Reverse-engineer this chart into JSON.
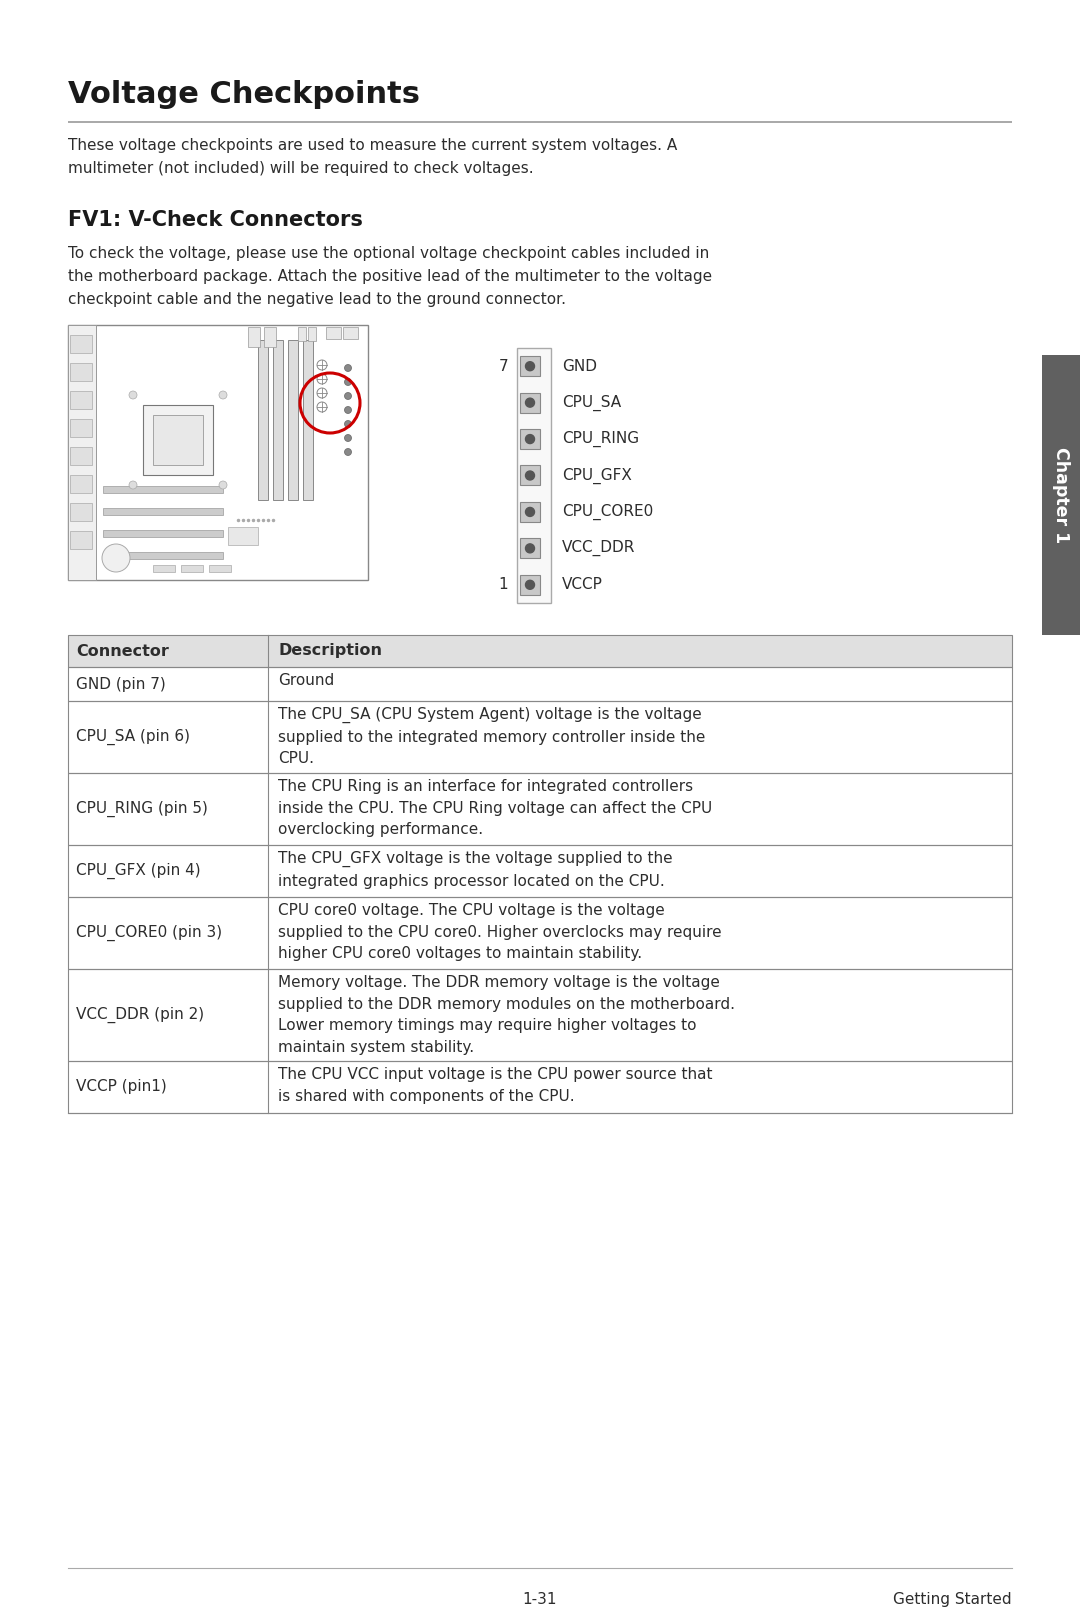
{
  "page_bg": "#ffffff",
  "title": "Voltage Checkpoints",
  "intro_text": "These voltage checkpoints are used to measure the current system voltages. A\nmultimeter (not included) will be required to check voltages.",
  "section_title": "FV1: V-Check Connectors",
  "section_text": "To check the voltage, please use the optional voltage checkpoint cables included in\nthe motherboard package. Attach the positive lead of the multimeter to the voltage\ncheckpoint cable and the negative lead to the ground connector.",
  "connector_labels": [
    "GND",
    "CPU_SA",
    "CPU_RING",
    "CPU_GFX",
    "CPU_CORE0",
    "VCC_DDR",
    "VCCP"
  ],
  "pin_numbers": [
    "7",
    "",
    "",
    "",
    "",
    "",
    "1"
  ],
  "table_headers": [
    "Connector",
    "Description"
  ],
  "table_rows": [
    [
      "GND (pin 7)",
      "Ground"
    ],
    [
      "CPU_SA (pin 6)",
      "The CPU_SA (CPU System Agent) voltage is the voltage\nsupplied to the integrated memory controller inside the\nCPU."
    ],
    [
      "CPU_RING (pin 5)",
      "The CPU Ring is an interface for integrated controllers\ninside the CPU. The CPU Ring voltage can affect the CPU\noverclocking performance."
    ],
    [
      "CPU_GFX (pin 4)",
      "The CPU_GFX voltage is the voltage supplied to the\nintegrated graphics processor located on the CPU."
    ],
    [
      "CPU_CORE0 (pin 3)",
      "CPU core0 voltage. The CPU voltage is the voltage\nsupplied to the CPU core0. Higher overclocks may require\nhigher CPU core0 voltages to maintain stability."
    ],
    [
      "VCC_DDR (pin 2)",
      "Memory voltage. The DDR memory voltage is the voltage\nsupplied to the DDR memory modules on the motherboard.\nLower memory timings may require higher voltages to\nmaintain system stability."
    ],
    [
      "VCCP (pin1)",
      "The CPU VCC input voltage is the CPU power source that\nis shared with components of the CPU."
    ]
  ],
  "chapter_tab_text": "Chapter 1",
  "footer_left": "1-31",
  "footer_right": "Getting Started",
  "text_color": "#2d2d2d",
  "title_color": "#1a1a1a",
  "table_border_color": "#888888",
  "table_header_bg": "#e0e0e0",
  "chapter_tab_bg": "#606060",
  "chapter_tab_text_color": "#ffffff",
  "underline_color": "#999999",
  "mb_border": "#888888",
  "mb_fill": "#ffffff",
  "connector_sq_fill": "#c8c8c8",
  "connector_sq_edge": "#888888",
  "connector_dot": "#555555"
}
